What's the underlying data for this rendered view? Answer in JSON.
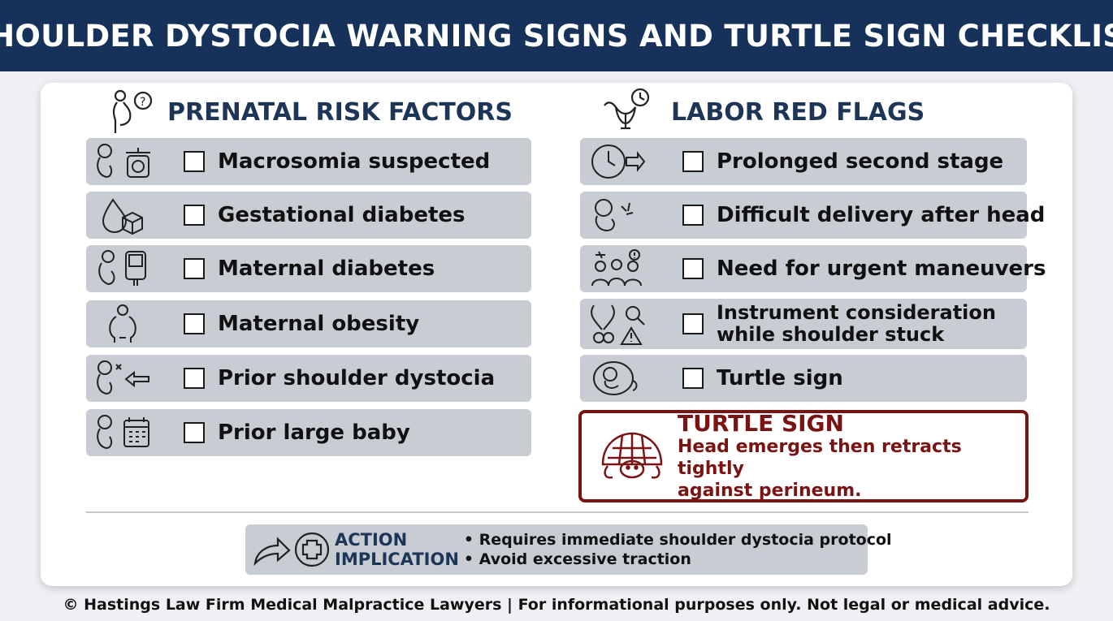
{
  "title": "SHOULDER DYSTOCIA WARNING SIGNS AND TURTLE SIGN CHECKLIST",
  "prenatal": {
    "heading": "PRENATAL RISK FACTORS",
    "heading_icon": "pregnant-question-icon",
    "items": [
      {
        "label": "Macrosomia suspected",
        "icon": "fetus-scale-icon"
      },
      {
        "label": "Gestational diabetes",
        "icon": "drop-sugar-cube-icon"
      },
      {
        "label": "Maternal diabetes",
        "icon": "pregnant-glucometer-icon"
      },
      {
        "label": "Maternal obesity",
        "icon": "obese-person-icon"
      },
      {
        "label": "Prior shoulder dystocia",
        "icon": "fetus-back-arrow-icon"
      },
      {
        "label": "Prior large baby",
        "icon": "fetus-calendar-icon"
      }
    ]
  },
  "labor": {
    "heading": "LABOR RED FLAGS",
    "heading_icon": "uterus-clock-icon",
    "items": [
      {
        "label": "Prolonged second stage",
        "icon": "clock-arrow-icon"
      },
      {
        "label": "Difficult delivery after head",
        "icon": "fetus-strain-icon"
      },
      {
        "label": "Need for urgent maneuvers",
        "icon": "medical-team-icon"
      },
      {
        "label_line1": "Instrument consideration",
        "label_line2": "while shoulder stuck",
        "icon": "forceps-warning-icon"
      },
      {
        "label": "Turtle sign",
        "icon": "fetus-head-icon"
      }
    ]
  },
  "callout": {
    "title": "TURTLE SIGN",
    "line1": "Head emerges then retracts tightly",
    "line2": "against perineum.",
    "icon": "turtle-icon",
    "color": "#7a1414"
  },
  "action": {
    "title_line1": "ACTION",
    "title_line2": "IMPLICATION",
    "bullets": [
      "• Requires immediate shoulder dystocia protocol",
      "• Avoid excessive traction"
    ],
    "icon": "arrow-medical-cross-icon"
  },
  "footer": "© Hastings Law Firm Medical Malpractice Lawyers | For informational purposes only. Not legal or medical advice.",
  "colors": {
    "banner": "#17325a",
    "heading": "#1d3557",
    "row": "#c8ccd3"
  }
}
